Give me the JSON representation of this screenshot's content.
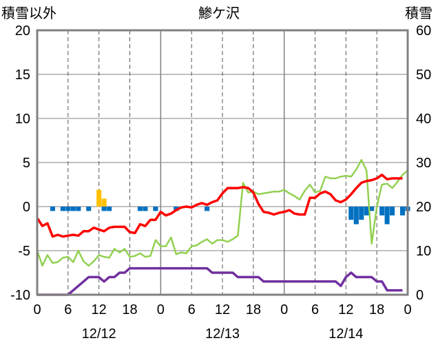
{
  "chart_data": {
    "type": "line",
    "title": "鯵ケ沢",
    "left_axis": {
      "label": "積雪以外",
      "ticks": [
        20,
        15,
        10,
        5,
        0,
        -5,
        -10
      ],
      "range": [
        -10,
        20
      ]
    },
    "right_axis": {
      "label": "積雪",
      "ticks": [
        60,
        50,
        40,
        30,
        20,
        10,
        0
      ],
      "range": [
        0,
        60
      ]
    },
    "x_axis": {
      "range_hours": [
        0,
        72
      ],
      "tick_labels": [
        "0",
        "6",
        "12",
        "18",
        "0",
        "6",
        "12",
        "18",
        "0",
        "6",
        "12",
        "18",
        "0"
      ],
      "date_labels": [
        {
          "label": "12/12",
          "hour": 12
        },
        {
          "label": "12/13",
          "hour": 36
        },
        {
          "label": "12/14",
          "hour": 60
        }
      ]
    },
    "colors": {
      "temperature": "#ff0000",
      "dew_point": "#92d050",
      "snow_depth": "#7030a0",
      "snowfall": "#ffc000",
      "precip_deficit": "#0070c0",
      "frame": "#808080"
    },
    "series": [
      {
        "key": "temperature",
        "axis": "left",
        "x": [
          0,
          1,
          2,
          3,
          4,
          5,
          6,
          7,
          8,
          9,
          10,
          11,
          12,
          13,
          14,
          15,
          16,
          17,
          18,
          19,
          20,
          21,
          22,
          23,
          24,
          25,
          26,
          27,
          28,
          29,
          30,
          31,
          32,
          33,
          34,
          35,
          36,
          37,
          38,
          39,
          40,
          41,
          42,
          43,
          44,
          45,
          46,
          47,
          48,
          49,
          50,
          51,
          52,
          53,
          54,
          55,
          56,
          57,
          58,
          59,
          60,
          61,
          62,
          63,
          64,
          65,
          66,
          67,
          68,
          69,
          70,
          71
        ],
        "values": [
          -1.3,
          -2.2,
          -1.9,
          -3.4,
          -3.2,
          -3.4,
          -3.3,
          -3.2,
          -3.3,
          -2.8,
          -2.8,
          -2.4,
          -2.6,
          -2.8,
          -2.4,
          -2.3,
          -2.3,
          -2.3,
          -2.9,
          -3.0,
          -2.0,
          -2.2,
          -1.5,
          -1.5,
          -0.6,
          -1.0,
          -0.8,
          -0.4,
          -0.1,
          0.0,
          -0.1,
          0.2,
          0.4,
          0.2,
          0.5,
          0.7,
          1.5,
          2.1,
          2.1,
          2.1,
          2.2,
          2.1,
          1.6,
          0.3,
          -0.6,
          -0.7,
          -0.9,
          -0.7,
          -0.6,
          -0.4,
          -0.8,
          -0.9,
          -0.9,
          1.0,
          1.0,
          1.5,
          1.7,
          1.4,
          0.7,
          0.5,
          0.8,
          1.4,
          2.1,
          2.7,
          2.9,
          3.0,
          3.2,
          3.6,
          3.1,
          3.2,
          3.2,
          3.2
        ]
      },
      {
        "key": "dew_point",
        "axis": "left",
        "x": [
          0,
          1,
          2,
          3,
          4,
          5,
          6,
          7,
          8,
          9,
          10,
          11,
          12,
          13,
          14,
          15,
          16,
          17,
          18,
          19,
          20,
          21,
          22,
          23,
          24,
          25,
          26,
          27,
          28,
          29,
          30,
          31,
          32,
          33,
          34,
          35,
          36,
          37,
          38,
          39,
          40,
          41,
          42,
          43,
          44,
          45,
          46,
          47,
          48,
          49,
          50,
          51,
          52,
          53,
          54,
          55,
          56,
          57,
          58,
          59,
          60,
          61,
          62,
          63,
          64,
          65,
          66,
          67,
          68,
          69,
          70,
          71,
          72
        ],
        "values": [
          -5.0,
          -6.7,
          -5.5,
          -6.4,
          -6.3,
          -5.8,
          -5.7,
          -6.3,
          -5.0,
          -6.2,
          -6.7,
          -6.2,
          -5.5,
          -5.7,
          -5.8,
          -4.8,
          -5.2,
          -4.8,
          -5.7,
          -5.6,
          -5.3,
          -5.7,
          -5.6,
          -3.8,
          -4.5,
          -4.5,
          -3.5,
          -5.4,
          -5.2,
          -5.3,
          -4.5,
          -4.4,
          -4.0,
          -3.7,
          -4.2,
          -3.8,
          -3.8,
          -4.0,
          -3.7,
          -3.3,
          2.7,
          1.6,
          1.7,
          1.4,
          1.5,
          1.6,
          1.7,
          1.7,
          1.9,
          1.5,
          1.2,
          0.8,
          1.8,
          2.5,
          1.6,
          1.8,
          3.4,
          3.2,
          3.2,
          3.4,
          3.5,
          3.4,
          4.2,
          5.3,
          4.1,
          -4.2,
          0.0,
          2.5,
          2.6,
          2.1,
          2.8,
          3.6,
          4.1
        ]
      },
      {
        "key": "snow_depth",
        "axis": "right",
        "x": [
          0,
          1,
          2,
          3,
          4,
          5,
          6,
          7,
          8,
          9,
          10,
          11,
          12,
          13,
          14,
          15,
          16,
          17,
          18,
          19,
          20,
          21,
          22,
          23,
          24,
          25,
          26,
          27,
          28,
          29,
          30,
          31,
          32,
          33,
          34,
          35,
          36,
          37,
          38,
          39,
          40,
          41,
          42,
          43,
          44,
          45,
          46,
          47,
          48,
          49,
          50,
          51,
          52,
          53,
          54,
          55,
          56,
          57,
          58,
          59,
          60,
          61,
          62,
          63,
          64,
          65,
          66,
          67,
          68,
          69,
          70,
          71
        ],
        "values": [
          0,
          0,
          0,
          0,
          0,
          0,
          0,
          1,
          2,
          3,
          4,
          4,
          4,
          3,
          4,
          4,
          5,
          5,
          6,
          6,
          6,
          6,
          6,
          6,
          6,
          6,
          6,
          6,
          6,
          6,
          6,
          6,
          6,
          6,
          5,
          5,
          5,
          5,
          5,
          4,
          4,
          4,
          4,
          4,
          3,
          3,
          3,
          3,
          3,
          3,
          3,
          3,
          3,
          3,
          3,
          3,
          3,
          3,
          3,
          2,
          4,
          5,
          4,
          4,
          4,
          4,
          3,
          3,
          1,
          1,
          1,
          1
        ]
      },
      {
        "key": "snowfall",
        "axis": "left",
        "type": "bar",
        "x": [
          12,
          13
        ],
        "values": [
          1.9,
          0.9
        ]
      },
      {
        "key": "precip_deficit",
        "axis": "left",
        "type": "bar",
        "x": [
          3,
          5,
          6,
          7,
          8,
          10,
          13,
          14,
          20,
          21,
          23,
          27,
          33,
          61,
          62,
          63,
          64,
          65,
          67,
          68,
          69,
          71,
          72
        ],
        "values": [
          -0.5,
          -0.5,
          -0.5,
          -0.5,
          -0.5,
          -0.5,
          -0.5,
          -0.5,
          -0.5,
          -0.5,
          -0.5,
          -0.5,
          -0.5,
          -1.5,
          -2.0,
          -1.5,
          -1.0,
          -0.5,
          -1.0,
          -2.0,
          -1.0,
          -1.0,
          -0.5
        ]
      }
    ]
  }
}
